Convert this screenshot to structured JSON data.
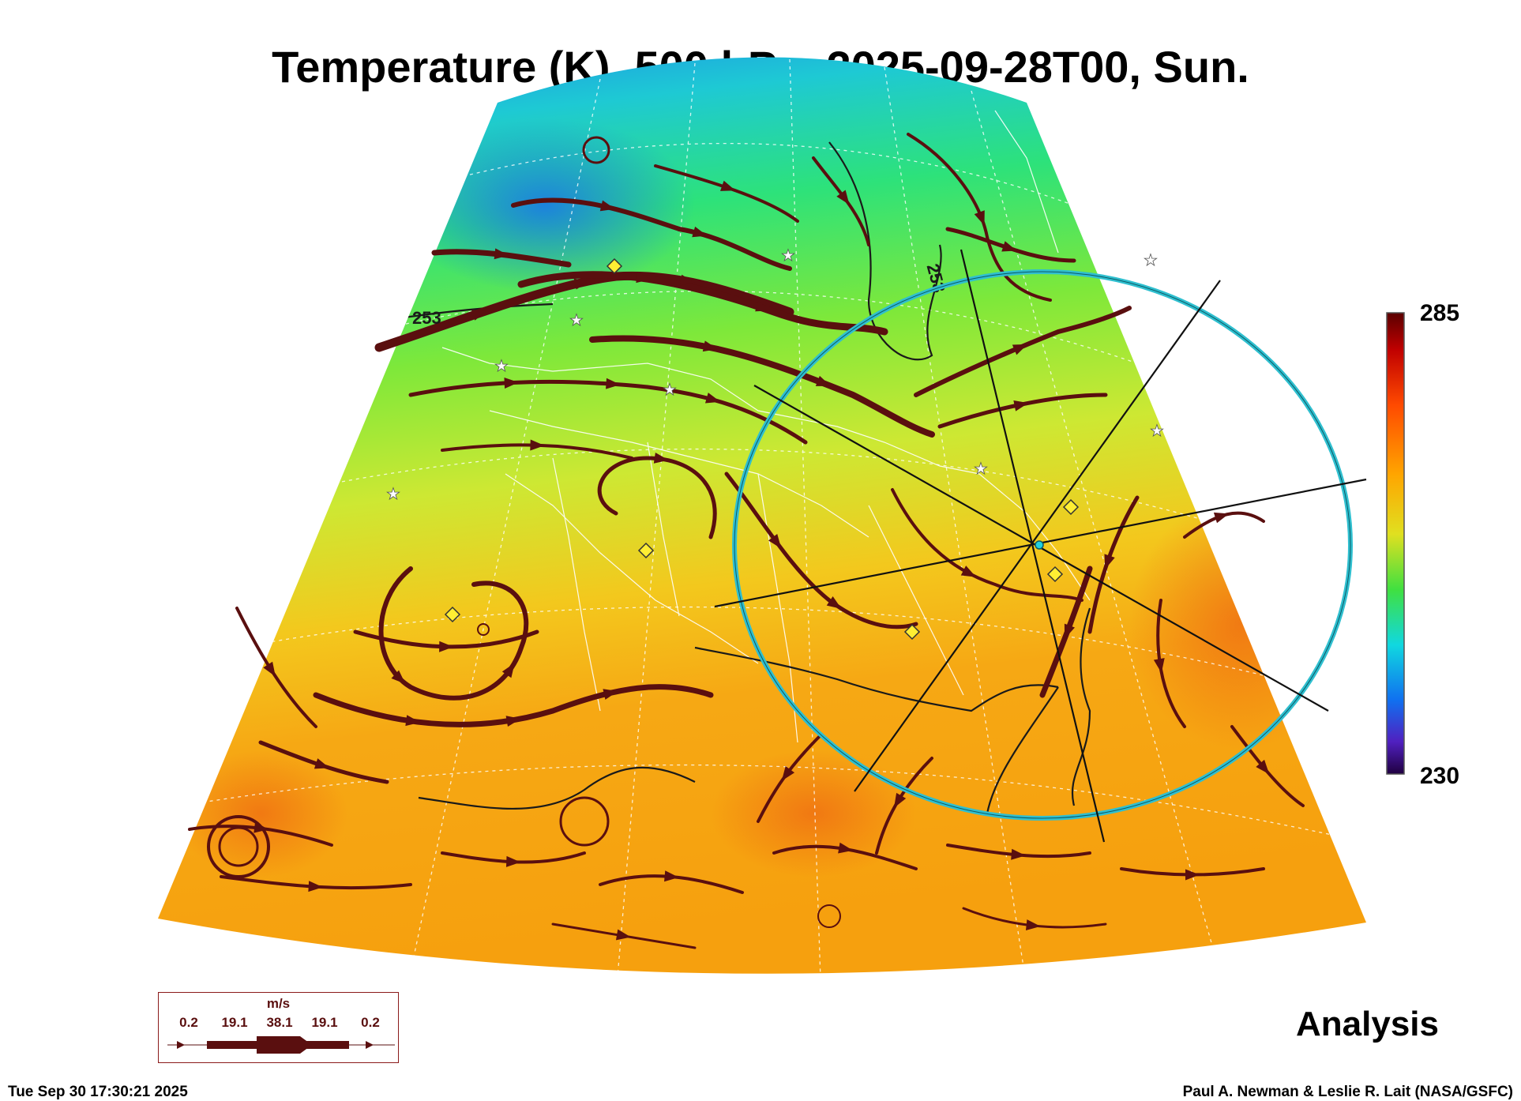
{
  "title": "Temperature (K), 500 hPa, 2025-09-28T00, Sun.",
  "colorbar": {
    "max": "285",
    "min": "230"
  },
  "contour_labels": {
    "a": "253",
    "b": "253"
  },
  "legend": {
    "unit": "m/s",
    "values": [
      "0.2",
      "19.1",
      "38.1",
      "19.1",
      "0.2"
    ]
  },
  "panel_label": "Analysis",
  "footer": {
    "timestamp": "Tue Sep 30 17:30:21 2025",
    "credit": "Paul A. Newman & Leslie R. Lait (NASA/GSFC)"
  },
  "colors": {
    "streamline": "#5a0f0f",
    "range_circle": "#2fbfcf",
    "marker_fill": "#ffee33",
    "cold": "#1f8fe8",
    "warm": "#f29a0c"
  },
  "icons": [
    "star-icon",
    "diamond-icon",
    "arrow-icon"
  ]
}
